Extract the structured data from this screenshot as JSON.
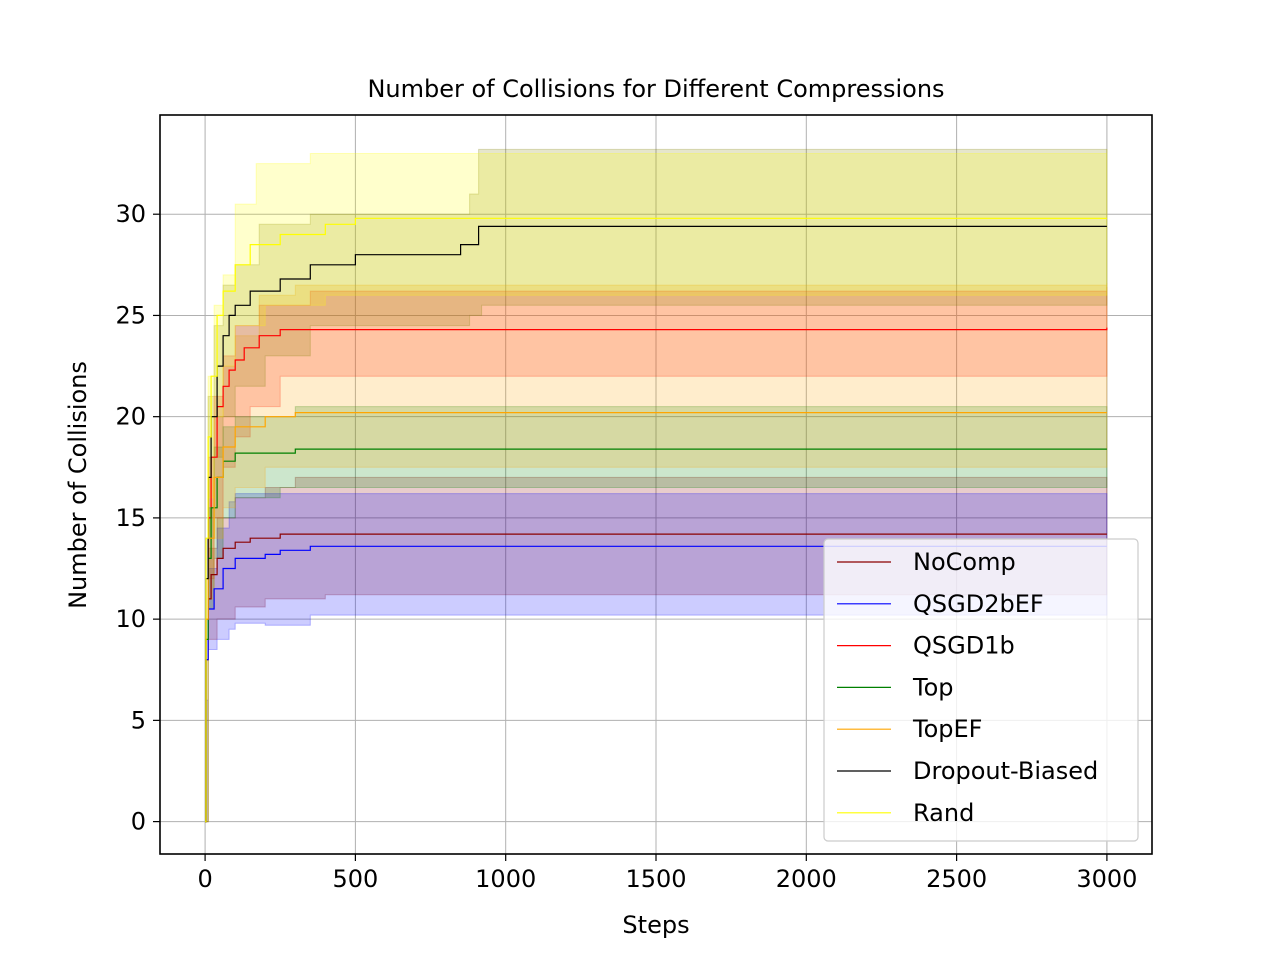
{
  "chart_data": {
    "type": "line",
    "title": "Number of Collisions for Different Compressions",
    "xlabel": "Steps",
    "ylabel": "Number of Collisions",
    "xlim": [
      -150,
      3150
    ],
    "ylim": [
      -1.6,
      34.9
    ],
    "xticks": [
      0,
      500,
      1000,
      1500,
      2000,
      2500,
      3000
    ],
    "yticks": [
      0,
      5,
      10,
      15,
      20,
      25,
      30
    ],
    "grid": true,
    "legend_position": "lower-right",
    "series": [
      {
        "name": "NoComp",
        "color": "#8b0000",
        "band_color": "#8b0000",
        "mean": [
          [
            0,
            0
          ],
          [
            3,
            8
          ],
          [
            10,
            11
          ],
          [
            20,
            12.2
          ],
          [
            40,
            13
          ],
          [
            60,
            13.5
          ],
          [
            100,
            13.8
          ],
          [
            150,
            14
          ],
          [
            250,
            14.2
          ],
          [
            3000,
            14.2
          ]
        ],
        "lower": [
          [
            0,
            0
          ],
          [
            10,
            9
          ],
          [
            40,
            10
          ],
          [
            100,
            10.6
          ],
          [
            200,
            11
          ],
          [
            400,
            11.2
          ],
          [
            3000,
            11.3
          ]
        ],
        "upper": [
          [
            0,
            0
          ],
          [
            10,
            13.5
          ],
          [
            40,
            15
          ],
          [
            100,
            16
          ],
          [
            200,
            16.5
          ],
          [
            300,
            17
          ],
          [
            3000,
            17
          ]
        ]
      },
      {
        "name": "QSGD2bEF",
        "color": "#0000ff",
        "band_color": "#0000ff",
        "mean": [
          [
            0,
            0
          ],
          [
            3,
            8
          ],
          [
            10,
            10.5
          ],
          [
            30,
            11.5
          ],
          [
            60,
            12.5
          ],
          [
            100,
            13
          ],
          [
            200,
            13.2
          ],
          [
            250,
            13.4
          ],
          [
            350,
            13.6
          ],
          [
            3000,
            13.6
          ]
        ],
        "lower": [
          [
            0,
            0
          ],
          [
            3,
            6
          ],
          [
            10,
            8.5
          ],
          [
            40,
            9
          ],
          [
            80,
            9.5
          ],
          [
            100,
            9.8
          ],
          [
            200,
            9.7
          ],
          [
            340,
            9.7
          ],
          [
            350,
            10.2
          ],
          [
            3000,
            10.2
          ]
        ],
        "upper": [
          [
            0,
            0
          ],
          [
            10,
            12.5
          ],
          [
            40,
            14.5
          ],
          [
            80,
            15.8
          ],
          [
            100,
            16.2
          ],
          [
            3000,
            16.2
          ]
        ]
      },
      {
        "name": "QSGD1b",
        "color": "#ff0000",
        "band_color": "#ff0000",
        "mean": [
          [
            0,
            0
          ],
          [
            3,
            10
          ],
          [
            10,
            15
          ],
          [
            20,
            18
          ],
          [
            40,
            20.5
          ],
          [
            60,
            21.5
          ],
          [
            80,
            22.3
          ],
          [
            100,
            22.8
          ],
          [
            130,
            23.4
          ],
          [
            180,
            24
          ],
          [
            250,
            24.3
          ],
          [
            3000,
            24.4
          ]
        ],
        "lower": [
          [
            0,
            0
          ],
          [
            10,
            12
          ],
          [
            30,
            15
          ],
          [
            60,
            17.5
          ],
          [
            100,
            19
          ],
          [
            150,
            20.5
          ],
          [
            250,
            22
          ],
          [
            3000,
            22.2
          ]
        ],
        "upper": [
          [
            0,
            0
          ],
          [
            10,
            18
          ],
          [
            30,
            21
          ],
          [
            60,
            23
          ],
          [
            100,
            24.5
          ],
          [
            180,
            25.5
          ],
          [
            350,
            26.2
          ],
          [
            3000,
            26.4
          ]
        ]
      },
      {
        "name": "Top",
        "color": "#008000",
        "band_color": "#008000",
        "mean": [
          [
            0,
            0
          ],
          [
            3,
            9
          ],
          [
            10,
            13
          ],
          [
            20,
            15.5
          ],
          [
            40,
            17
          ],
          [
            60,
            17.8
          ],
          [
            100,
            18.2
          ],
          [
            300,
            18.4
          ],
          [
            3000,
            18.4
          ]
        ],
        "lower": [
          [
            0,
            0
          ],
          [
            10,
            10.5
          ],
          [
            30,
            13
          ],
          [
            60,
            15
          ],
          [
            100,
            16
          ],
          [
            250,
            16.5
          ],
          [
            3000,
            16.5
          ]
        ],
        "upper": [
          [
            0,
            0
          ],
          [
            10,
            15.5
          ],
          [
            30,
            18.5
          ],
          [
            60,
            19.5
          ],
          [
            100,
            20
          ],
          [
            300,
            20.5
          ],
          [
            3000,
            20.5
          ]
        ]
      },
      {
        "name": "TopEF",
        "color": "#ffa500",
        "band_color": "#ffa500",
        "mean": [
          [
            0,
            0
          ],
          [
            3,
            10
          ],
          [
            10,
            14
          ],
          [
            30,
            17
          ],
          [
            60,
            18.5
          ],
          [
            100,
            19.5
          ],
          [
            200,
            20
          ],
          [
            300,
            20.2
          ],
          [
            3000,
            20.2
          ]
        ],
        "lower": [
          [
            0,
            0
          ],
          [
            10,
            11
          ],
          [
            30,
            14
          ],
          [
            60,
            15.5
          ],
          [
            100,
            16.5
          ],
          [
            200,
            17.5
          ],
          [
            3000,
            17.6
          ]
        ],
        "upper": [
          [
            0,
            0
          ],
          [
            10,
            17
          ],
          [
            30,
            20
          ],
          [
            60,
            22.5
          ],
          [
            100,
            24
          ],
          [
            180,
            26
          ],
          [
            300,
            26.5
          ],
          [
            3000,
            26.6
          ]
        ]
      },
      {
        "name": "Dropout-Biased",
        "color": "#000000",
        "band_color": "#808000",
        "mean": [
          [
            0,
            0
          ],
          [
            3,
            12
          ],
          [
            10,
            17
          ],
          [
            20,
            20
          ],
          [
            40,
            22.5
          ],
          [
            60,
            24
          ],
          [
            80,
            25
          ],
          [
            100,
            25.5
          ],
          [
            150,
            26.2
          ],
          [
            250,
            26.8
          ],
          [
            350,
            27.5
          ],
          [
            500,
            28
          ],
          [
            850,
            28.5
          ],
          [
            910,
            29.4
          ],
          [
            3000,
            29.4
          ]
        ],
        "lower": [
          [
            0,
            0
          ],
          [
            10,
            14
          ],
          [
            30,
            18
          ],
          [
            60,
            20
          ],
          [
            100,
            21.5
          ],
          [
            200,
            23
          ],
          [
            350,
            24.5
          ],
          [
            880,
            25
          ],
          [
            920,
            25.5
          ],
          [
            3000,
            25.6
          ]
        ],
        "upper": [
          [
            0,
            0
          ],
          [
            10,
            21
          ],
          [
            30,
            24.5
          ],
          [
            60,
            26.5
          ],
          [
            100,
            27.5
          ],
          [
            180,
            29.5
          ],
          [
            350,
            30
          ],
          [
            880,
            31
          ],
          [
            910,
            33.2
          ],
          [
            3000,
            33.2
          ]
        ]
      },
      {
        "name": "Rand",
        "color": "#ffff00",
        "band_color": "#ffff00",
        "mean": [
          [
            0,
            0
          ],
          [
            3,
            14
          ],
          [
            10,
            19
          ],
          [
            20,
            22
          ],
          [
            40,
            25
          ],
          [
            60,
            26.2
          ],
          [
            100,
            27.5
          ],
          [
            150,
            28.5
          ],
          [
            250,
            29
          ],
          [
            400,
            29.5
          ],
          [
            500,
            29.8
          ],
          [
            3000,
            29.8
          ]
        ],
        "lower": [
          [
            0,
            0
          ],
          [
            10,
            16
          ],
          [
            30,
            20
          ],
          [
            60,
            22.5
          ],
          [
            100,
            24.5
          ],
          [
            200,
            25.5
          ],
          [
            400,
            26
          ],
          [
            3000,
            26.2
          ]
        ],
        "upper": [
          [
            0,
            0
          ],
          [
            10,
            22
          ],
          [
            30,
            25.5
          ],
          [
            60,
            27
          ],
          [
            100,
            30.5
          ],
          [
            170,
            32.5
          ],
          [
            350,
            33
          ],
          [
            3000,
            33.2
          ]
        ]
      }
    ]
  }
}
